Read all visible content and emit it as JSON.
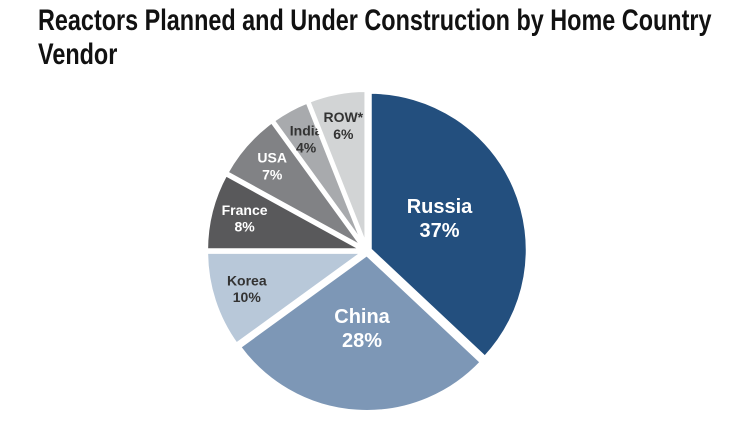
{
  "chart_data": {
    "type": "pie",
    "title": "Reactors Planned and Under Construction by Home Country Vendor",
    "categories": [
      "Russia",
      "China",
      "Korea",
      "France",
      "USA",
      "India",
      "ROW*"
    ],
    "values": [
      37,
      28,
      10,
      8,
      7,
      4,
      6
    ],
    "value_labels": [
      "37%",
      "28%",
      "10%",
      "8%",
      "7%",
      "4%",
      "6%"
    ],
    "colors": [
      "#234f7e",
      "#7d97b6",
      "#b8c8d9",
      "#59595b",
      "#818285",
      "#a8aaad",
      "#d2d4d5"
    ]
  }
}
